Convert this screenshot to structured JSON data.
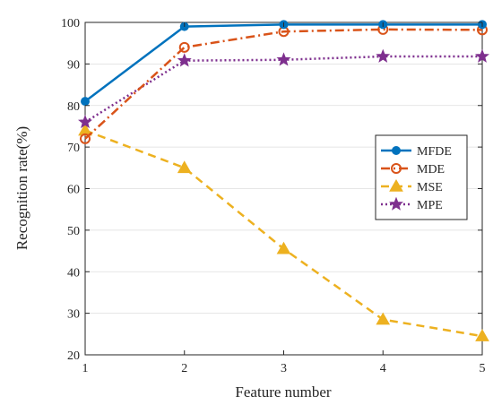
{
  "chart_data": {
    "type": "line",
    "xlabel": "Feature number",
    "ylabel": "Recognition rate(%)",
    "xlim": [
      1,
      5
    ],
    "ylim": [
      20,
      100
    ],
    "xticks": [
      "1",
      "2",
      "3",
      "4",
      "5"
    ],
    "yticks": [
      "20",
      "30",
      "40",
      "50",
      "60",
      "70",
      "80",
      "90",
      "100"
    ],
    "x": [
      1,
      2,
      3,
      4,
      5
    ],
    "legend_position": "right",
    "series": [
      {
        "name": "MFDE",
        "values": [
          81,
          99,
          99.5,
          99.5,
          99.5
        ],
        "color": "#0072bd",
        "dash": "solid",
        "marker": "circle-filled"
      },
      {
        "name": "MDE",
        "values": [
          72,
          94,
          97.8,
          98.3,
          98.2
        ],
        "color": "#d95319",
        "dash": "dashdot",
        "marker": "circle-open"
      },
      {
        "name": "MSE",
        "values": [
          74,
          65,
          45.5,
          28.5,
          24.5
        ],
        "color": "#edb120",
        "dash": "dashed",
        "marker": "triangle"
      },
      {
        "name": "MPE",
        "values": [
          76,
          90.8,
          91,
          91.8,
          91.8
        ],
        "color": "#7e2f8e",
        "dash": "dotted",
        "marker": "star"
      }
    ]
  }
}
